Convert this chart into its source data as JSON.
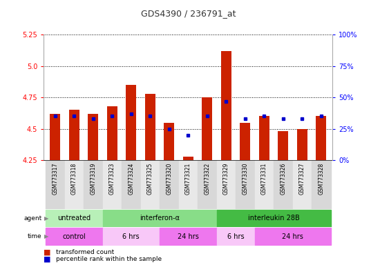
{
  "title": "GDS4390 / 236791_at",
  "samples": [
    "GSM773317",
    "GSM773318",
    "GSM773319",
    "GSM773323",
    "GSM773324",
    "GSM773325",
    "GSM773320",
    "GSM773321",
    "GSM773322",
    "GSM773329",
    "GSM773330",
    "GSM773331",
    "GSM773326",
    "GSM773327",
    "GSM773328"
  ],
  "red_values": [
    4.62,
    4.65,
    4.62,
    4.68,
    4.85,
    4.78,
    4.55,
    4.28,
    4.75,
    5.12,
    4.55,
    4.6,
    4.48,
    4.5,
    4.6
  ],
  "blue_percentile": [
    35,
    35,
    33,
    35,
    37,
    35,
    25,
    20,
    35,
    47,
    33,
    35,
    33,
    33,
    35
  ],
  "ymin": 4.25,
  "ymax": 5.25,
  "yticks": [
    4.25,
    4.5,
    4.75,
    5.0,
    5.25
  ],
  "y2ticks": [
    0,
    25,
    50,
    75,
    100
  ],
  "y2labels": [
    "0%",
    "25%",
    "50%",
    "75%",
    "100%"
  ],
  "agent_groups": [
    {
      "label": "untreated",
      "start": 0,
      "end": 3,
      "color": "#b8f0b8"
    },
    {
      "label": "interferon-α",
      "start": 3,
      "end": 9,
      "color": "#88dd88"
    },
    {
      "label": "interleukin 28B",
      "start": 9,
      "end": 15,
      "color": "#44bb44"
    }
  ],
  "time_groups": [
    {
      "label": "control",
      "start": 0,
      "end": 3,
      "color": "#ee77ee"
    },
    {
      "label": "6 hrs",
      "start": 3,
      "end": 6,
      "color": "#f8c8f8"
    },
    {
      "label": "24 hrs",
      "start": 6,
      "end": 9,
      "color": "#ee77ee"
    },
    {
      "label": "6 hrs",
      "start": 9,
      "end": 11,
      "color": "#f8c8f8"
    },
    {
      "label": "24 hrs",
      "start": 11,
      "end": 15,
      "color": "#ee77ee"
    }
  ],
  "bar_color": "#cc2200",
  "dot_color": "#0000cc",
  "title_color": "#333333"
}
